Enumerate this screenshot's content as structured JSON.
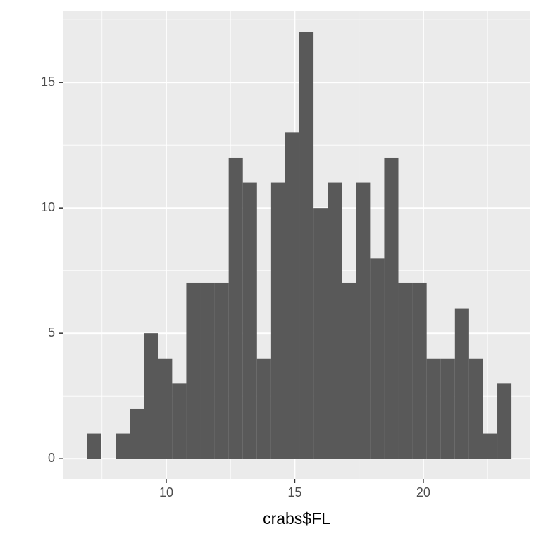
{
  "chart_data": {
    "type": "histogram",
    "x_label": "crabs$FL",
    "bins": [
      6.93,
      7.48,
      8.03,
      8.58,
      9.13,
      9.68,
      10.23,
      10.78,
      11.33,
      11.88,
      12.43,
      12.98,
      13.53,
      14.08,
      14.63,
      15.18,
      15.73,
      16.28,
      16.83,
      17.38,
      17.93,
      18.48,
      19.03,
      19.58,
      20.13,
      20.68,
      21.23,
      21.78,
      22.33,
      22.88,
      23.43
    ],
    "values": [
      1,
      0,
      1,
      2,
      5,
      4,
      3,
      7,
      7,
      7,
      12,
      11,
      4,
      11,
      13,
      17,
      10,
      11,
      7,
      11,
      8,
      12,
      7,
      7,
      4,
      4,
      6,
      4,
      1,
      3
    ],
    "color": "#595959",
    "xlim": [
      6.0,
      24.14
    ],
    "ylim": [
      -0.81,
      17.87
    ],
    "xticks": [
      10,
      15,
      20
    ],
    "yticks": [
      0,
      5,
      10,
      15
    ],
    "xminor": [
      7.5,
      12.5,
      17.5,
      22.5
    ],
    "yminor": [
      2.5,
      7.5,
      12.5,
      17.5
    ],
    "grid": true
  }
}
